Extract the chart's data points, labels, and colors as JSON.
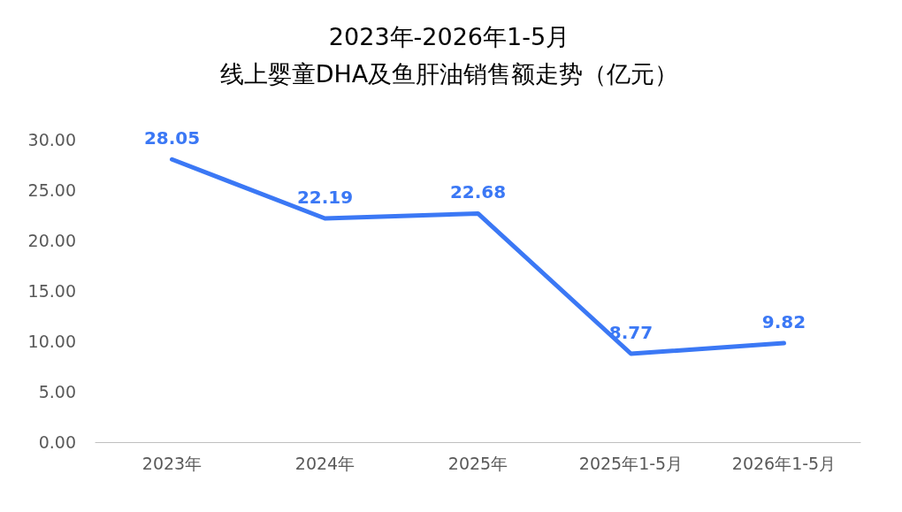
{
  "chart_data": {
    "type": "line",
    "title": "2023年-2026年1-5月",
    "subtitle": "线上婴童DHA及鱼肝油销售额走势（亿元）",
    "categories": [
      "2023年",
      "2024年",
      "2025年",
      "2025年1-5月",
      "2026年1-5月"
    ],
    "series": [
      {
        "color": "#3b78f5",
        "values": [
          28.05,
          22.19,
          22.68,
          8.77,
          9.82
        ]
      }
    ],
    "ylim": [
      0,
      30
    ],
    "yticks": [
      {
        "value": 0,
        "label": "0.00"
      },
      {
        "value": 5,
        "label": "5.00"
      },
      {
        "value": 10,
        "label": "10.00"
      },
      {
        "value": 15,
        "label": "15.00"
      },
      {
        "value": 20,
        "label": "20.00"
      },
      {
        "value": 25,
        "label": "25.00"
      },
      {
        "value": 30,
        "label": "30.00"
      }
    ],
    "data_labels": true,
    "grid": false,
    "marker": "none",
    "line_style": "solid"
  }
}
